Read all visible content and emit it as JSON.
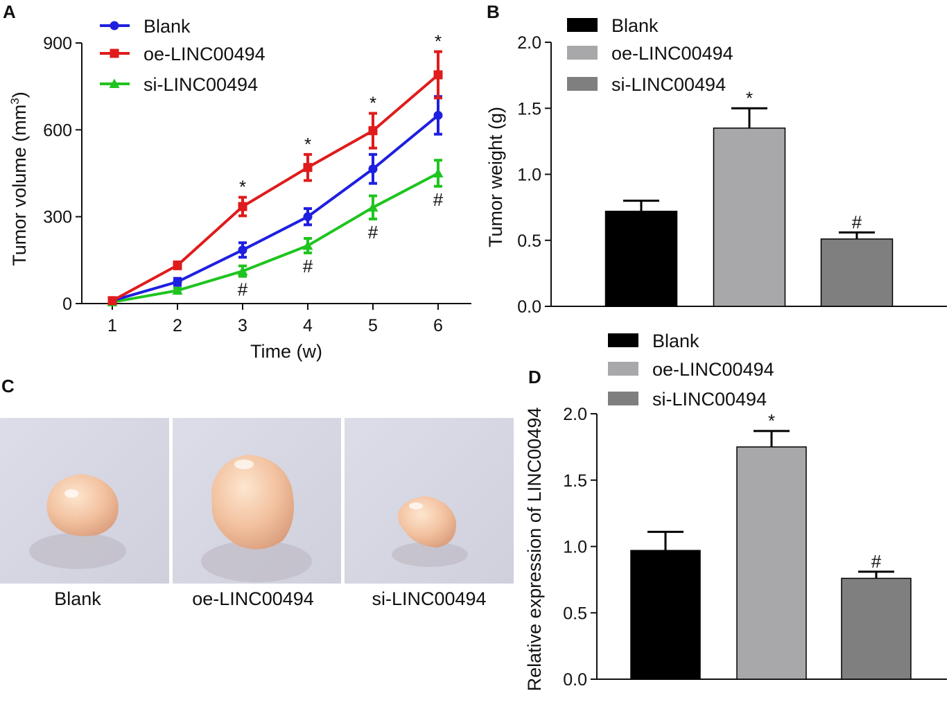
{
  "panels": {
    "a": {
      "letter": "A"
    },
    "b": {
      "letter": "B"
    },
    "c": {
      "letter": "C"
    },
    "d": {
      "letter": "D"
    }
  },
  "colors": {
    "blank_line": "#1f1fe0",
    "oe_line": "#e01b1b",
    "si_line": "#1fc41f",
    "blank_bar": "#000000",
    "oe_bar": "#a8a8ab",
    "si_bar": "#7f7f80"
  },
  "photos": {
    "labels": [
      "Blank",
      "oe-LINC00494",
      "si-LINC00494"
    ]
  },
  "chart_data": [
    {
      "id": "A",
      "type": "line",
      "title": "",
      "xlabel": "Time (w)",
      "ylabel": "Tumor volume (mm",
      "ylabel_sup": "3",
      "ylabel_end": ")",
      "x": [
        1,
        2,
        3,
        4,
        5,
        6
      ],
      "xticks": [
        "1",
        "2",
        "3",
        "4",
        "5",
        "6"
      ],
      "yticks": [
        "0",
        "300",
        "600",
        "900"
      ],
      "ylim": [
        0,
        900
      ],
      "legend_position": "top-left",
      "series": [
        {
          "name": "Blank",
          "marker": "circle",
          "values": [
            10,
            75,
            185,
            300,
            465,
            650
          ],
          "errors": [
            5,
            12,
            25,
            28,
            50,
            65
          ],
          "annotations": [
            "",
            "",
            "",
            "",
            "",
            ""
          ]
        },
        {
          "name": "oe-LINC00494",
          "marker": "square",
          "values": [
            10,
            132,
            335,
            470,
            597,
            790
          ],
          "errors": [
            5,
            12,
            32,
            45,
            60,
            80
          ],
          "annotations": [
            "",
            "",
            "*",
            "*",
            "*",
            "*"
          ]
        },
        {
          "name": "si-LINC00494",
          "marker": "triangle",
          "values": [
            5,
            45,
            112,
            200,
            332,
            450
          ],
          "errors": [
            3,
            8,
            18,
            25,
            40,
            45
          ],
          "annotations": [
            "",
            "",
            "#",
            "#",
            "#",
            "#"
          ]
        }
      ]
    },
    {
      "id": "B",
      "type": "bar",
      "title": "",
      "xlabel": "",
      "ylabel": "Tumor weight (g)",
      "categories": [
        "Blank",
        "oe-LINC00494",
        "si-LINC00494"
      ],
      "values": [
        0.72,
        1.35,
        0.51
      ],
      "errors": [
        0.08,
        0.15,
        0.05
      ],
      "annotations": [
        "",
        "*",
        "#"
      ],
      "yticks": [
        "0.0",
        "0.5",
        "1.0",
        "1.5",
        "2.0"
      ],
      "ylim": [
        0,
        2.0
      ],
      "legend_position": "top-left"
    },
    {
      "id": "D",
      "type": "bar",
      "title": "",
      "xlabel": "",
      "ylabel": "Relative expression of LINC00494",
      "categories": [
        "Blank",
        "oe-LINC00494",
        "si-LINC00494"
      ],
      "values": [
        0.97,
        1.75,
        0.76
      ],
      "errors": [
        0.14,
        0.12,
        0.05
      ],
      "annotations": [
        "",
        "*",
        "#"
      ],
      "yticks": [
        "0.0",
        "0.5",
        "1.0",
        "1.5",
        "2.0"
      ],
      "ylim": [
        0,
        2.0
      ],
      "legend_position": "top"
    }
  ]
}
